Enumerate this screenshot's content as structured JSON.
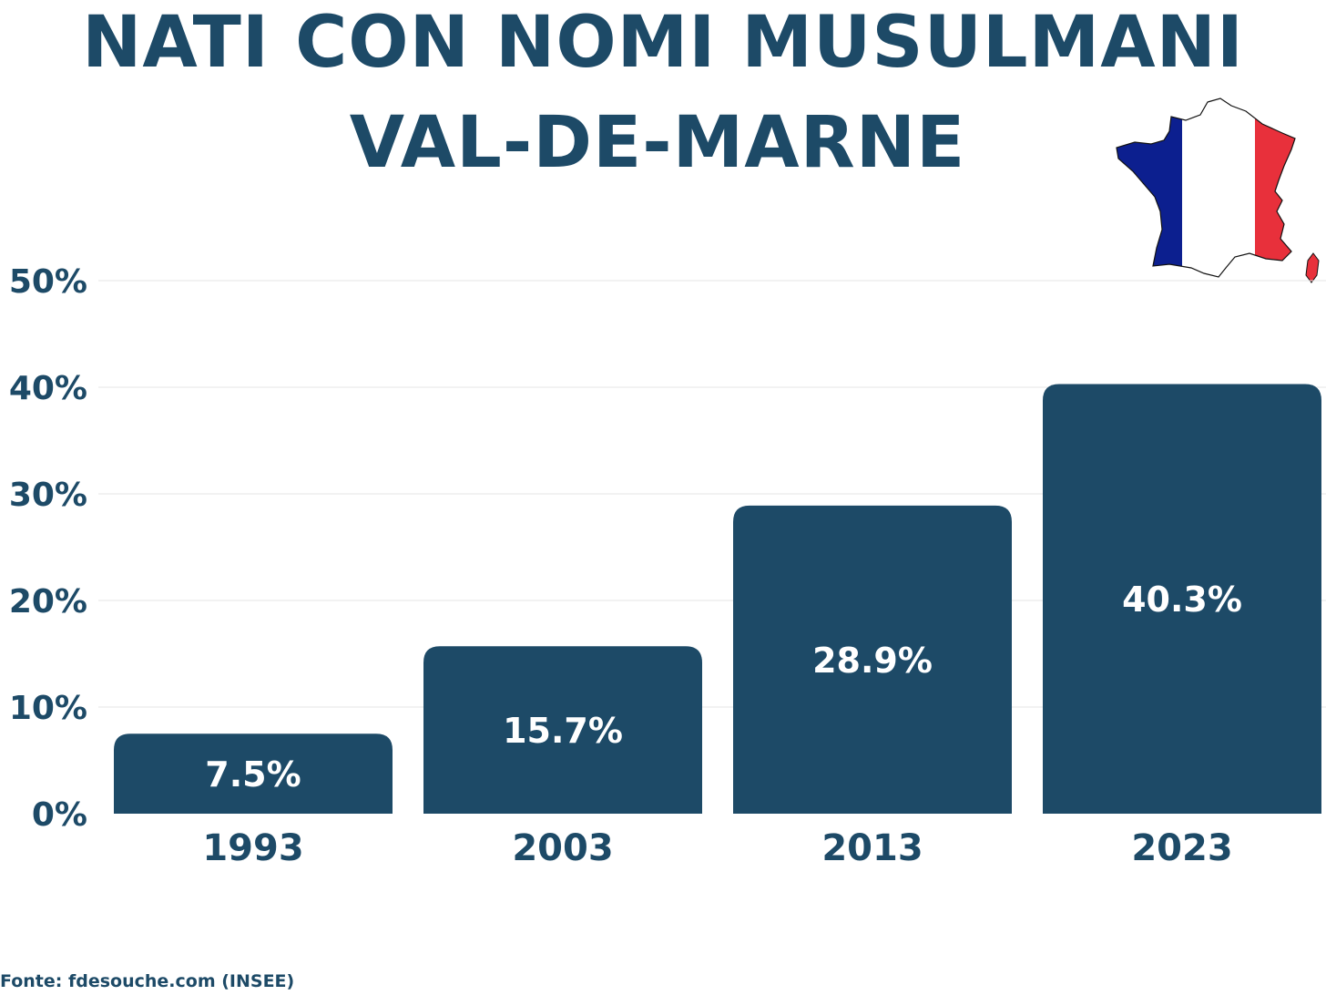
{
  "header": {
    "title_line1": "NATI CON NOMI MUSULMANI",
    "title_line2": "VAL-DE-MARNE"
  },
  "source": "Fonte: fdesouche.com (INSEE)",
  "colors": {
    "bar": "#1d4a67",
    "text": "#1d4a67",
    "flag_blue": "#0c1f8f",
    "flag_white": "#ffffff",
    "flag_red": "#e8303b"
  },
  "icons": [
    "france-flag-map-icon"
  ],
  "chart_data": {
    "type": "bar",
    "title": "NATI CON NOMI MUSULMANI VAL-DE-MARNE",
    "categories": [
      "1993",
      "2003",
      "2013",
      "2023"
    ],
    "values": [
      7.5,
      15.7,
      28.9,
      40.3
    ],
    "data_labels": [
      "7.5%",
      "15.7%",
      "28.9%",
      "40.3%"
    ],
    "ylim": [
      0,
      50
    ],
    "yticks": [
      "0%",
      "10%",
      "20%",
      "30%",
      "40%",
      "50%"
    ],
    "xlabel": "",
    "ylabel": "",
    "grid": true,
    "legend": "none"
  }
}
